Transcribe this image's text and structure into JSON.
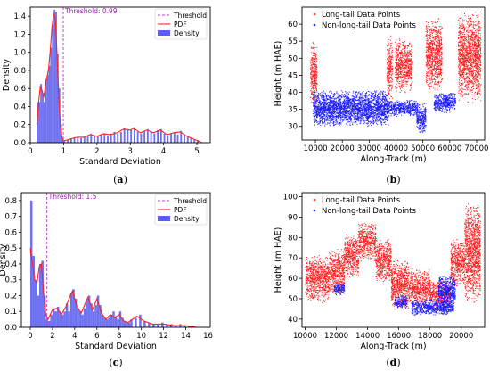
{
  "chart_data": [
    {
      "id": "a",
      "type": "bar",
      "caption": "(a)",
      "xlabel": "Standard Deviation",
      "ylabel": "Density",
      "xlim": [
        0,
        5.4
      ],
      "ylim": [
        0,
        1.5
      ],
      "xticks": [
        0,
        1,
        2,
        3,
        4,
        5
      ],
      "yticks": [
        0.0,
        0.2,
        0.4,
        0.6,
        0.8,
        1.0,
        1.2,
        1.4
      ],
      "threshold": 0.99,
      "threshold_label": "Threshold: 0.99",
      "legend": [
        "Threshold",
        "PDF",
        "Density"
      ],
      "colors": {
        "density": "#5a5ef0",
        "pdf": "#ff2020",
        "threshold": "#b23bc9"
      },
      "bin_width": 0.05,
      "bins": [
        [
          0.2,
          0.45
        ],
        [
          0.25,
          0.45
        ],
        [
          0.3,
          0.65
        ],
        [
          0.35,
          0.55
        ],
        [
          0.4,
          0.45
        ],
        [
          0.45,
          0.7
        ],
        [
          0.5,
          0.75
        ],
        [
          0.55,
          0.85
        ],
        [
          0.6,
          1.05
        ],
        [
          0.65,
          1.3
        ],
        [
          0.7,
          1.47
        ],
        [
          0.75,
          1.45
        ],
        [
          0.8,
          0.98
        ],
        [
          0.85,
          0.6
        ],
        [
          0.9,
          0.2
        ],
        [
          0.95,
          0.05
        ],
        [
          1.0,
          0.02
        ],
        [
          1.1,
          0.03
        ],
        [
          1.2,
          0.05
        ],
        [
          1.3,
          0.06
        ],
        [
          1.4,
          0.06
        ],
        [
          1.5,
          0.05
        ],
        [
          1.6,
          0.06
        ],
        [
          1.7,
          0.08
        ],
        [
          1.8,
          0.1
        ],
        [
          1.9,
          0.08
        ],
        [
          2.0,
          0.07
        ],
        [
          2.1,
          0.09
        ],
        [
          2.2,
          0.1
        ],
        [
          2.3,
          0.08
        ],
        [
          2.4,
          0.1
        ],
        [
          2.5,
          0.12
        ],
        [
          2.6,
          0.1
        ],
        [
          2.7,
          0.12
        ],
        [
          2.8,
          0.16
        ],
        [
          2.9,
          0.15
        ],
        [
          3.0,
          0.14
        ],
        [
          3.1,
          0.17
        ],
        [
          3.2,
          0.12
        ],
        [
          3.3,
          0.1
        ],
        [
          3.4,
          0.13
        ],
        [
          3.5,
          0.15
        ],
        [
          3.6,
          0.12
        ],
        [
          3.7,
          0.1
        ],
        [
          3.8,
          0.14
        ],
        [
          3.9,
          0.15
        ],
        [
          4.0,
          0.1
        ],
        [
          4.1,
          0.08
        ],
        [
          4.2,
          0.1
        ],
        [
          4.3,
          0.12
        ],
        [
          4.4,
          0.09
        ],
        [
          4.5,
          0.13
        ],
        [
          4.6,
          0.09
        ],
        [
          4.7,
          0.06
        ],
        [
          4.8,
          0.05
        ],
        [
          4.9,
          0.04
        ],
        [
          5.0,
          0.03
        ],
        [
          5.1,
          0.01
        ]
      ],
      "pdf": [
        [
          0.2,
          0.2
        ],
        [
          0.25,
          0.45
        ],
        [
          0.3,
          0.62
        ],
        [
          0.35,
          0.58
        ],
        [
          0.4,
          0.5
        ],
        [
          0.45,
          0.62
        ],
        [
          0.5,
          0.72
        ],
        [
          0.55,
          0.82
        ],
        [
          0.6,
          1.02
        ],
        [
          0.65,
          1.28
        ],
        [
          0.7,
          1.42
        ],
        [
          0.75,
          1.38
        ],
        [
          0.8,
          1.0
        ],
        [
          0.85,
          0.55
        ],
        [
          0.9,
          0.2
        ],
        [
          0.95,
          0.06
        ],
        [
          1.0,
          0.02
        ],
        [
          1.2,
          0.04
        ],
        [
          1.4,
          0.06
        ],
        [
          1.6,
          0.06
        ],
        [
          1.8,
          0.09
        ],
        [
          2.0,
          0.07
        ],
        [
          2.2,
          0.1
        ],
        [
          2.4,
          0.09
        ],
        [
          2.6,
          0.11
        ],
        [
          2.8,
          0.15
        ],
        [
          3.0,
          0.14
        ],
        [
          3.1,
          0.16
        ],
        [
          3.3,
          0.11
        ],
        [
          3.5,
          0.14
        ],
        [
          3.7,
          0.11
        ],
        [
          3.9,
          0.14
        ],
        [
          4.1,
          0.09
        ],
        [
          4.3,
          0.11
        ],
        [
          4.5,
          0.12
        ],
        [
          4.7,
          0.07
        ],
        [
          4.9,
          0.04
        ],
        [
          5.1,
          0.01
        ]
      ]
    },
    {
      "id": "b",
      "type": "scatter",
      "caption": "(b)",
      "xlabel": "Along-Track (m)",
      "ylabel": "Height (m HAE)",
      "xlim": [
        5000,
        73000
      ],
      "ylim": [
        26,
        65
      ],
      "xticks": [
        10000,
        20000,
        30000,
        40000,
        50000,
        60000,
        70000
      ],
      "yticks": [
        30,
        35,
        40,
        45,
        50,
        55,
        60
      ],
      "series": [
        {
          "name": "Long-tail Data Points",
          "color": "#ff1a1a",
          "regions": [
            [
              8000,
              10500,
              35,
              55
            ],
            [
              36500,
              38500,
              37,
              57
            ],
            [
              39500,
              46000,
              40,
              56
            ],
            [
              51000,
              57000,
              40,
              62
            ],
            [
              63000,
              71500,
              37,
              64
            ]
          ]
        },
        {
          "name": "Non-long-tail Data Points",
          "color": "#1a1aff",
          "regions": [
            [
              9000,
              37000,
              30,
              41
            ],
            [
              36500,
              48000,
              33,
              38
            ],
            [
              47500,
              51000,
              28,
              37
            ],
            [
              54000,
              60000,
              34,
              40
            ],
            [
              58000,
              62000,
              35,
              40
            ]
          ]
        }
      ]
    },
    {
      "id": "c",
      "type": "bar",
      "caption": "(c)",
      "xlabel": "Standard Deviation",
      "ylabel": "Density",
      "xlim": [
        -0.8,
        16.2
      ],
      "ylim": [
        0,
        0.85
      ],
      "xticks": [
        0,
        2,
        4,
        6,
        8,
        10,
        12,
        14,
        16
      ],
      "yticks": [
        0.0,
        0.1,
        0.2,
        0.3,
        0.4,
        0.5,
        0.6,
        0.7,
        0.8
      ],
      "threshold": 1.5,
      "threshold_label": "Threshold: 1.5",
      "legend": [
        "Threshold",
        "PDF",
        "Density"
      ],
      "colors": {
        "density": "#5a5ef0",
        "pdf": "#ff2020",
        "threshold": "#b23bc9"
      },
      "bin_width": 0.2,
      "bins": [
        [
          0.0,
          0.8
        ],
        [
          0.2,
          0.45
        ],
        [
          0.4,
          0.3
        ],
        [
          0.6,
          0.2
        ],
        [
          0.8,
          0.4
        ],
        [
          1.0,
          0.42
        ],
        [
          1.2,
          0.2
        ],
        [
          1.4,
          0.05
        ],
        [
          1.6,
          0.04
        ],
        [
          1.8,
          0.08
        ],
        [
          2.0,
          0.12
        ],
        [
          2.2,
          0.1
        ],
        [
          2.4,
          0.13
        ],
        [
          2.6,
          0.1
        ],
        [
          2.8,
          0.08
        ],
        [
          3.0,
          0.1
        ],
        [
          3.2,
          0.15
        ],
        [
          3.4,
          0.1
        ],
        [
          3.6,
          0.22
        ],
        [
          3.8,
          0.24
        ],
        [
          4.0,
          0.18
        ],
        [
          4.2,
          0.12
        ],
        [
          4.4,
          0.1
        ],
        [
          4.6,
          0.08
        ],
        [
          4.8,
          0.12
        ],
        [
          5.0,
          0.18
        ],
        [
          5.2,
          0.2
        ],
        [
          5.4,
          0.15
        ],
        [
          5.6,
          0.1
        ],
        [
          5.8,
          0.14
        ],
        [
          6.0,
          0.2
        ],
        [
          6.2,
          0.14
        ],
        [
          6.4,
          0.08
        ],
        [
          6.6,
          0.06
        ],
        [
          6.8,
          0.05
        ],
        [
          7.0,
          0.06
        ],
        [
          7.2,
          0.08
        ],
        [
          7.4,
          0.1
        ],
        [
          7.6,
          0.07
        ],
        [
          7.8,
          0.05
        ],
        [
          8.0,
          0.1
        ],
        [
          8.2,
          0.06
        ],
        [
          8.4,
          0.04
        ],
        [
          8.6,
          0.03
        ],
        [
          8.8,
          0.03
        ],
        [
          9.0,
          0.05
        ],
        [
          9.4,
          0.06
        ],
        [
          9.8,
          0.08
        ],
        [
          10.2,
          0.04
        ],
        [
          10.6,
          0.03
        ],
        [
          11.0,
          0.02
        ],
        [
          11.4,
          0.02
        ],
        [
          11.8,
          0.03
        ],
        [
          12.2,
          0.02
        ],
        [
          12.6,
          0.02
        ],
        [
          13.0,
          0.01
        ],
        [
          13.4,
          0.02
        ],
        [
          13.8,
          0.01
        ],
        [
          14.2,
          0.01
        ],
        [
          14.6,
          0.01
        ],
        [
          15.0,
          0.0
        ]
      ],
      "pdf": [
        [
          0.0,
          0.5
        ],
        [
          0.2,
          0.4
        ],
        [
          0.4,
          0.3
        ],
        [
          0.6,
          0.28
        ],
        [
          0.8,
          0.38
        ],
        [
          1.0,
          0.4
        ],
        [
          1.2,
          0.22
        ],
        [
          1.4,
          0.08
        ],
        [
          1.6,
          0.05
        ],
        [
          2.0,
          0.11
        ],
        [
          2.4,
          0.12
        ],
        [
          2.8,
          0.08
        ],
        [
          3.2,
          0.13
        ],
        [
          3.6,
          0.2
        ],
        [
          3.8,
          0.23
        ],
        [
          4.2,
          0.13
        ],
        [
          4.6,
          0.09
        ],
        [
          5.0,
          0.16
        ],
        [
          5.2,
          0.19
        ],
        [
          5.6,
          0.11
        ],
        [
          6.0,
          0.18
        ],
        [
          6.4,
          0.09
        ],
        [
          6.8,
          0.05
        ],
        [
          7.2,
          0.08
        ],
        [
          7.6,
          0.06
        ],
        [
          8.0,
          0.08
        ],
        [
          8.4,
          0.04
        ],
        [
          8.8,
          0.03
        ],
        [
          9.6,
          0.07
        ],
        [
          10.2,
          0.04
        ],
        [
          11.0,
          0.02
        ],
        [
          12.0,
          0.02
        ],
        [
          13.0,
          0.01
        ],
        [
          14.0,
          0.01
        ],
        [
          15.0,
          0.0
        ]
      ]
    },
    {
      "id": "d",
      "type": "scatter",
      "caption": "(d)",
      "xlabel": "Along-Track (m)",
      "ylabel": "Height (m HAE)",
      "xlim": [
        9800,
        21500
      ],
      "ylim": [
        36,
        102
      ],
      "xticks": [
        10000,
        12000,
        14000,
        16000,
        18000,
        20000
      ],
      "yticks": [
        40,
        50,
        60,
        70,
        80,
        90,
        100
      ],
      "series": [
        {
          "name": "Long-tail Data Points",
          "color": "#ff1a1a",
          "regions": [
            [
              10000,
              11500,
              48,
              72
            ],
            [
              11500,
              12500,
              52,
              75
            ],
            [
              12500,
              13400,
              60,
              82
            ],
            [
              13400,
              14500,
              68,
              88
            ],
            [
              14500,
              15500,
              58,
              80
            ],
            [
              15500,
              16600,
              44,
              70
            ],
            [
              16600,
              18000,
              46,
              65
            ],
            [
              18000,
              19300,
              44,
              60
            ],
            [
              19300,
              20200,
              55,
              80
            ],
            [
              20200,
              21200,
              48,
              98
            ]
          ]
        },
        {
          "name": "Non-long-tail Data Points",
          "color": "#1a1aff",
          "regions": [
            [
              11800,
              12500,
              52,
              58
            ],
            [
              16800,
              19500,
              42,
              50
            ],
            [
              15700,
              16500,
              45,
              52
            ],
            [
              18500,
              19600,
              46,
              62
            ]
          ]
        }
      ]
    }
  ]
}
